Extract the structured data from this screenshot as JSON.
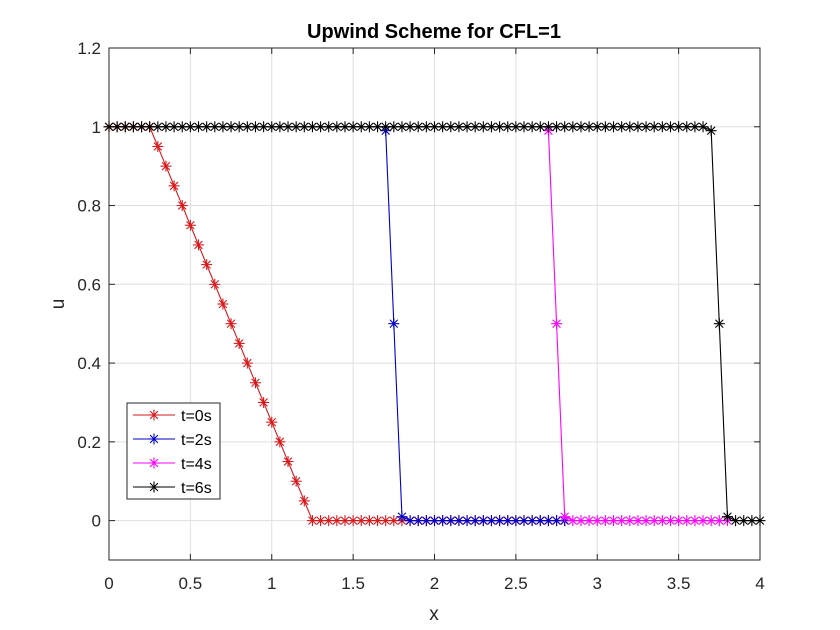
{
  "chart_data": {
    "type": "line",
    "title": "Upwind Scheme for CFL=1",
    "xlabel": "x",
    "ylabel": "u",
    "xlim": [
      0,
      4
    ],
    "ylim": [
      -0.1,
      1.2
    ],
    "xticks": [
      0,
      0.5,
      1,
      1.5,
      2,
      2.5,
      3,
      3.5,
      4
    ],
    "xtick_labels": [
      "0",
      "0.5",
      "1",
      "1.5",
      "2",
      "2.5",
      "3",
      "3.5",
      "4"
    ],
    "yticks": [
      0,
      0.2,
      0.4,
      0.6,
      0.8,
      1,
      1.2
    ],
    "ytick_labels": [
      "0",
      "0.2",
      "0.4",
      "0.6",
      "0.8",
      "1",
      "1.2"
    ],
    "grid": true,
    "legend_position": "lower-left",
    "marker": "asterisk",
    "x": [
      0,
      0.05,
      0.1,
      0.15,
      0.2,
      0.25,
      0.3,
      0.35,
      0.4,
      0.45,
      0.5,
      0.55,
      0.6,
      0.65,
      0.7,
      0.75,
      0.8,
      0.85,
      0.9,
      0.95,
      1,
      1.05,
      1.1,
      1.15,
      1.2,
      1.25,
      1.3,
      1.35,
      1.4,
      1.45,
      1.5,
      1.55,
      1.6,
      1.65,
      1.7,
      1.75,
      1.8,
      1.85,
      1.9,
      1.95,
      2,
      2.05,
      2.1,
      2.15,
      2.2,
      2.25,
      2.3,
      2.35,
      2.4,
      2.45,
      2.5,
      2.55,
      2.6,
      2.65,
      2.7,
      2.75,
      2.8,
      2.85,
      2.9,
      2.95,
      3,
      3.05,
      3.1,
      3.15,
      3.2,
      3.25,
      3.3,
      3.35,
      3.4,
      3.45,
      3.5,
      3.55,
      3.6,
      3.65,
      3.7,
      3.75,
      3.8,
      3.85,
      3.9,
      3.95,
      4
    ],
    "series": [
      {
        "name": "t=0s",
        "color": "#d7191c",
        "x_range": [
          0,
          2.8
        ],
        "values": [
          1,
          1,
          1,
          1,
          1,
          1,
          0.95,
          0.9,
          0.85,
          0.8,
          0.75,
          0.7,
          0.65,
          0.6,
          0.55,
          0.5,
          0.45,
          0.4,
          0.35,
          0.3,
          0.25,
          0.2,
          0.15,
          0.1,
          0.05,
          0,
          0,
          0,
          0,
          0,
          0,
          0,
          0,
          0,
          0,
          0,
          0,
          0,
          0,
          0,
          0,
          0,
          0,
          0,
          0,
          0,
          0,
          0,
          0,
          0,
          0,
          0,
          0,
          0,
          0,
          0,
          0,
          0,
          0,
          0,
          0,
          0,
          0,
          0,
          0,
          0,
          0,
          0,
          0,
          0,
          0,
          0,
          0,
          0,
          0,
          0,
          0,
          0,
          0,
          0,
          0
        ]
      },
      {
        "name": "t=2s",
        "color": "#0000c8",
        "x_range": [
          1.7,
          2.8
        ],
        "values": [
          1,
          1,
          1,
          1,
          1,
          1,
          1,
          1,
          1,
          1,
          1,
          1,
          1,
          1,
          1,
          1,
          1,
          1,
          1,
          1,
          1,
          1,
          1,
          1,
          1,
          1,
          1,
          1,
          1,
          1,
          1,
          1,
          1,
          1,
          0.99,
          0.5,
          0.01,
          0,
          0,
          0,
          0,
          0,
          0,
          0,
          0,
          0,
          0,
          0,
          0,
          0,
          0,
          0,
          0,
          0,
          0,
          0,
          0,
          0,
          0,
          0,
          0,
          0,
          0,
          0,
          0,
          0,
          0,
          0,
          0,
          0,
          0,
          0,
          0,
          0,
          0,
          0,
          0,
          0,
          0,
          0,
          0
        ]
      },
      {
        "name": "t=4s",
        "color": "#ff00ff",
        "x_range": [
          2.7,
          3.8
        ],
        "values": [
          1,
          1,
          1,
          1,
          1,
          1,
          1,
          1,
          1,
          1,
          1,
          1,
          1,
          1,
          1,
          1,
          1,
          1,
          1,
          1,
          1,
          1,
          1,
          1,
          1,
          1,
          1,
          1,
          1,
          1,
          1,
          1,
          1,
          1,
          1,
          1,
          1,
          1,
          1,
          1,
          1,
          1,
          1,
          1,
          1,
          1,
          1,
          1,
          1,
          1,
          1,
          1,
          1,
          1,
          0.99,
          0.5,
          0.01,
          0,
          0,
          0,
          0,
          0,
          0,
          0,
          0,
          0,
          0,
          0,
          0,
          0,
          0,
          0,
          0,
          0,
          0,
          0,
          0,
          0,
          0,
          0,
          0
        ]
      },
      {
        "name": "t=6s",
        "color": "#000000",
        "x_range": [
          0,
          4
        ],
        "values": [
          1,
          1,
          1,
          1,
          1,
          1,
          1,
          1,
          1,
          1,
          1,
          1,
          1,
          1,
          1,
          1,
          1,
          1,
          1,
          1,
          1,
          1,
          1,
          1,
          1,
          1,
          1,
          1,
          1,
          1,
          1,
          1,
          1,
          1,
          1,
          1,
          1,
          1,
          1,
          1,
          1,
          1,
          1,
          1,
          1,
          1,
          1,
          1,
          1,
          1,
          1,
          1,
          1,
          1,
          1,
          1,
          1,
          1,
          1,
          1,
          1,
          1,
          1,
          1,
          1,
          1,
          1,
          1,
          1,
          1,
          1,
          1,
          1,
          1,
          0.99,
          0.5,
          0.01,
          0,
          0,
          0,
          0
        ]
      }
    ]
  }
}
